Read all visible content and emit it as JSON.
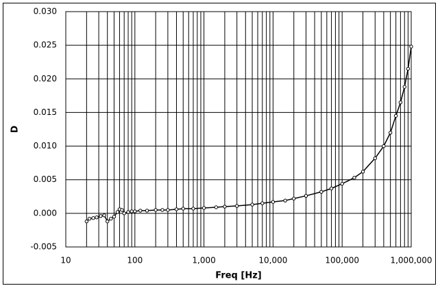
{
  "chart_data": {
    "type": "line",
    "xlabel": "Freq [Hz]",
    "ylabel": "D",
    "x": [
      20,
      22,
      25,
      28,
      32,
      36,
      40,
      45,
      50,
      56,
      60,
      65,
      70,
      80,
      90,
      100,
      120,
      150,
      200,
      250,
      300,
      400,
      500,
      700,
      1000,
      1500,
      2000,
      3000,
      5000,
      7000,
      10000,
      15000,
      20000,
      30000,
      50000,
      70000,
      100000,
      150000,
      200000,
      300000,
      400000,
      500000,
      600000,
      700000,
      800000,
      900000,
      1000000
    ],
    "values": [
      -0.0012,
      -0.0008,
      -0.0007,
      -0.0006,
      -0.0004,
      -0.0003,
      -0.0012,
      -0.0008,
      -0.0005,
      0.0002,
      0.0006,
      0.0005,
      0.0,
      0.0002,
      0.0003,
      0.0003,
      0.0004,
      0.0004,
      0.0005,
      0.0005,
      0.0005,
      0.0006,
      0.0007,
      0.0007,
      0.0008,
      0.0009,
      0.001,
      0.0011,
      0.0013,
      0.0015,
      0.0017,
      0.0019,
      0.0022,
      0.0026,
      0.0032,
      0.0037,
      0.0044,
      0.0053,
      0.0062,
      0.0082,
      0.01,
      0.012,
      0.0145,
      0.0165,
      0.0188,
      0.0215,
      0.0248
    ],
    "color": "#000000",
    "xscale": "log",
    "xlim": [
      10,
      1000000
    ],
    "xticks": [
      10,
      100,
      {
        "value": 1000,
        "label": "1,000"
      },
      {
        "value": 10000,
        "label": "10,000"
      },
      {
        "value": 100000,
        "label": "100,000"
      },
      {
        "value": 1000000,
        "label": "1,000,000"
      }
    ],
    "ylim": [
      -0.005,
      0.03
    ],
    "yticks": [
      {
        "value": -0.005,
        "label": "-0.005"
      },
      {
        "value": 0,
        "label": "0.000"
      },
      {
        "value": 0.005,
        "label": "0.005"
      },
      {
        "value": 0.01,
        "label": "0.010"
      },
      {
        "value": 0.015,
        "label": "0.015"
      },
      {
        "value": 0.02,
        "label": "0.020"
      },
      {
        "value": 0.025,
        "label": "0.025"
      },
      {
        "value": 0.03,
        "label": "0.030"
      }
    ],
    "grid": true
  }
}
